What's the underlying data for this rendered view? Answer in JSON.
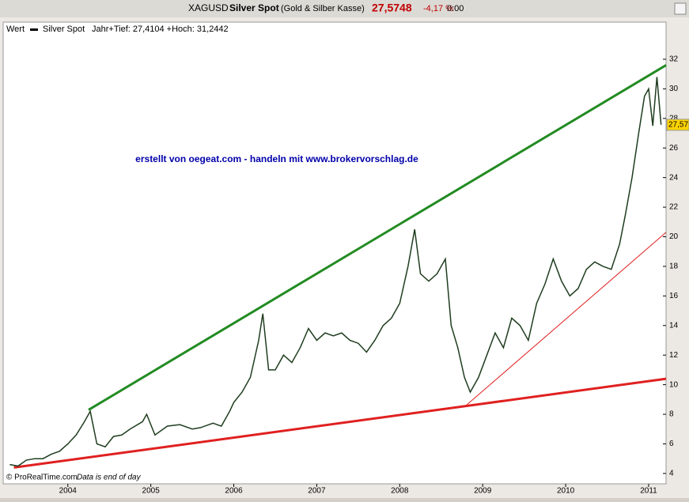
{
  "header": {
    "symbol": "XAGUSD",
    "name": "Silver Spot",
    "market": "(Gold & Silber Kasse)",
    "price": "27,5748",
    "change": "-4,17 %",
    "time": "0:00"
  },
  "legend": {
    "label": "Wert",
    "series": "Silver Spot",
    "info": "Jahr+Tief: 27,4104 +Hoch: 31,2442"
  },
  "footer": {
    "source": "© ProRealTime.com",
    "note": "Data is end of day"
  },
  "chart_data": {
    "type": "line",
    "annotation": "erstellt von oegeat.com - handeln mit www.brokervorschlag.de",
    "xlim": [
      2003.23,
      2011.21
    ],
    "xticks": [
      2004,
      2005,
      2006,
      2007,
      2008,
      2009,
      2010,
      2011
    ],
    "ylim": [
      3.3,
      33.6
    ],
    "yticks": [
      4,
      6,
      8,
      10,
      12,
      14,
      16,
      18,
      20,
      22,
      24,
      26,
      28,
      30,
      32
    ],
    "grid": false,
    "series": [
      {
        "name": "Silver Spot",
        "color": "#1f3d1f",
        "x": [
          2003.3,
          2003.4,
          2003.5,
          2003.6,
          2003.7,
          2003.8,
          2003.9,
          2004.0,
          2004.1,
          2004.2,
          2004.27,
          2004.35,
          2004.45,
          2004.55,
          2004.65,
          2004.75,
          2004.9,
          2004.95,
          2005.05,
          2005.2,
          2005.35,
          2005.5,
          2005.6,
          2005.75,
          2005.85,
          2005.95,
          2006.0,
          2006.1,
          2006.2,
          2006.3,
          2006.35,
          2006.42,
          2006.5,
          2006.6,
          2006.7,
          2006.8,
          2006.9,
          2007.0,
          2007.1,
          2007.2,
          2007.3,
          2007.4,
          2007.5,
          2007.6,
          2007.7,
          2007.8,
          2007.9,
          2008.0,
          2008.1,
          2008.18,
          2008.25,
          2008.35,
          2008.45,
          2008.55,
          2008.62,
          2008.7,
          2008.78,
          2008.85,
          2008.95,
          2009.05,
          2009.15,
          2009.25,
          2009.35,
          2009.45,
          2009.55,
          2009.65,
          2009.75,
          2009.85,
          2009.95,
          2010.05,
          2010.15,
          2010.25,
          2010.35,
          2010.45,
          2010.55,
          2010.65,
          2010.72,
          2010.8,
          2010.88,
          2010.95,
          2011.0,
          2011.05,
          2011.1,
          2011.15
        ],
        "values": [
          4.6,
          4.5,
          4.9,
          5.0,
          5.0,
          5.3,
          5.5,
          6.0,
          6.6,
          7.5,
          8.2,
          6.0,
          5.8,
          6.5,
          6.6,
          7.0,
          7.5,
          8.0,
          6.6,
          7.2,
          7.3,
          7.0,
          7.1,
          7.4,
          7.2,
          8.2,
          8.8,
          9.5,
          10.5,
          13.0,
          14.8,
          11.0,
          11.0,
          12.0,
          11.5,
          12.5,
          13.8,
          13.0,
          13.5,
          13.3,
          13.5,
          13.0,
          12.8,
          12.2,
          13.0,
          14.0,
          14.5,
          15.5,
          18.0,
          20.5,
          17.5,
          17.0,
          17.5,
          18.5,
          14.0,
          12.5,
          10.5,
          9.5,
          10.5,
          12.0,
          13.5,
          12.5,
          14.5,
          14.0,
          13.0,
          15.5,
          16.8,
          18.5,
          17.0,
          16.0,
          16.5,
          17.8,
          18.3,
          18.0,
          17.8,
          19.5,
          21.5,
          24.0,
          27.0,
          29.5,
          30.0,
          27.5,
          30.8,
          27.57
        ],
        "last_label": "27,57"
      }
    ],
    "trendlines": [
      {
        "color": "#228b22",
        "x": [
          2004.25,
          2011.21
        ],
        "values": [
          8.3,
          31.6
        ]
      },
      {
        "color": "#e02020",
        "x": [
          2003.35,
          2011.21
        ],
        "values": [
          4.4,
          10.4
        ]
      },
      {
        "color": "#e02020",
        "x": [
          2008.8,
          2011.21
        ],
        "values": [
          8.6,
          20.3
        ]
      }
    ]
  }
}
